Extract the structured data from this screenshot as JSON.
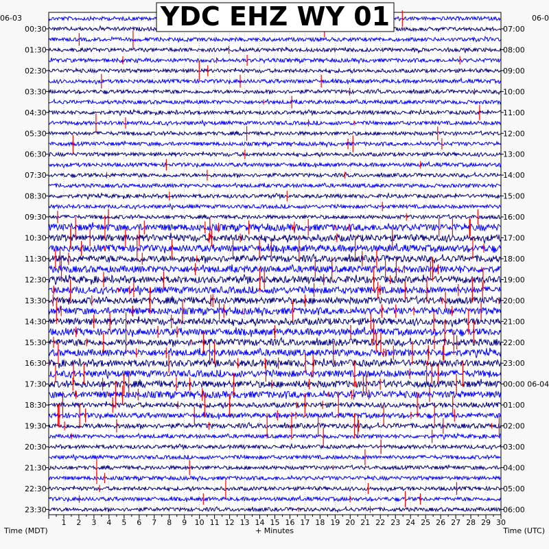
{
  "chart_data": {
    "type": "line",
    "title": "YDC EHZ WY 01",
    "date_left": "06-03",
    "date_right": "06-0",
    "xlabel": "+ Minutes",
    "left_axis_label": "Time (MDT)",
    "right_axis_label": "Time (UTC)",
    "xlim": [
      0,
      30
    ],
    "x_ticks": [
      "1",
      "2",
      "3",
      "4",
      "5",
      "6",
      "7",
      "8",
      "9",
      "10",
      "11",
      "12",
      "13",
      "14",
      "15",
      "16",
      "17",
      "18",
      "19",
      "20",
      "21",
      "22",
      "23",
      "24",
      "25",
      "26",
      "27",
      "28",
      "29",
      "30"
    ],
    "left_ticks": [
      "00:30",
      "01:30",
      "02:30",
      "03:30",
      "04:30",
      "05:30",
      "06:30",
      "07:30",
      "08:30",
      "09:30",
      "10:30",
      "11:30",
      "12:30",
      "13:30",
      "14:30",
      "15:30",
      "16:30",
      "17:30",
      "18:30",
      "19:30",
      "20:30",
      "21:30",
      "22:30",
      "23:30"
    ],
    "right_ticks": [
      "07:00",
      "08:00",
      "09:00",
      "10:00",
      "11:00",
      "12:00",
      "13:00",
      "14:00",
      "15:00",
      "16:00",
      "17:00",
      "18:00",
      "19:00",
      "20:00",
      "21:00",
      "22:00",
      "23:00",
      "00:00 06-04",
      "01:00",
      "02:00",
      "03:00",
      "04:00",
      "05:00",
      "06:00"
    ],
    "trace_count": 48,
    "trace_colors": [
      "#0000ff",
      "#000080"
    ],
    "event_color": "#ff0000",
    "grid": true
  }
}
